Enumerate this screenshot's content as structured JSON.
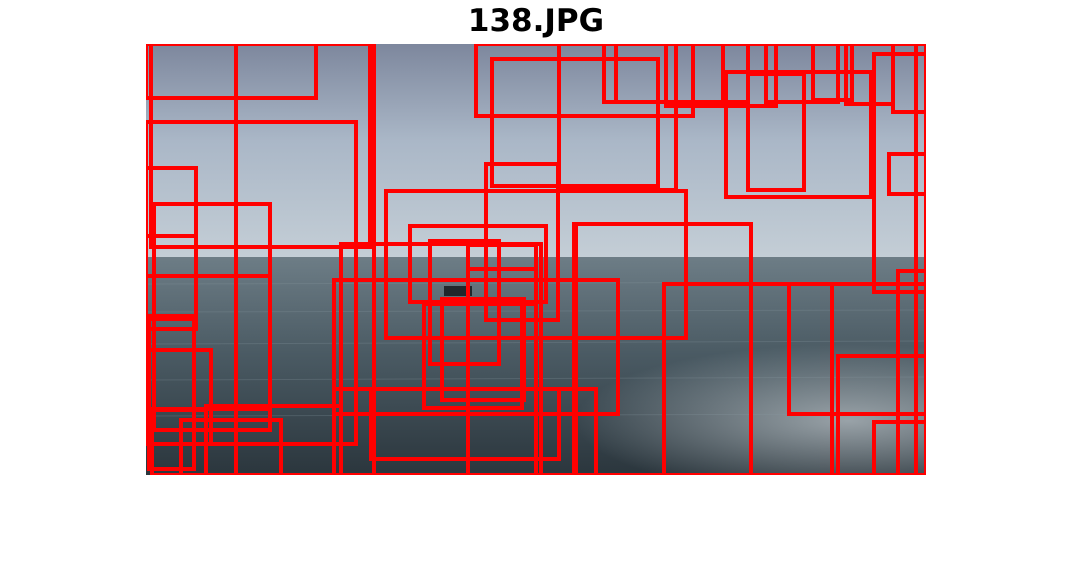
{
  "figure": {
    "title": "138.JPG"
  },
  "photo": {
    "scene_colors": {
      "sky_top": "#7d879d",
      "sky_mid": "#aab7c7",
      "horizon_haze": "#c4ced6",
      "sea_far": "#6d7d86",
      "sea_mid": "#4a5a63",
      "sea_near": "#2b363d",
      "boat": "#20272c"
    }
  },
  "overlay": {
    "box_color": "#ff0000"
  }
}
